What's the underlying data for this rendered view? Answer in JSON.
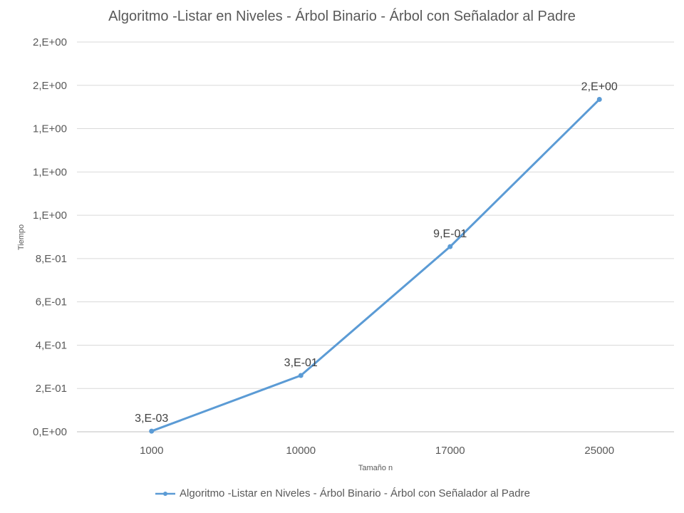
{
  "chart_data": {
    "type": "line",
    "title": "Algoritmo -Listar en Niveles - Árbol Binario - Árbol con Señalador al Padre",
    "xlabel": "Tamaño n",
    "ylabel": "Tiempo",
    "categories": [
      "1000",
      "10000",
      "17000",
      "25000"
    ],
    "series": [
      {
        "name": "Algoritmo -Listar en Niveles - Árbol Binario - Árbol con Señalador al Padre",
        "values": [
          0.003,
          0.26,
          0.855,
          1.535
        ],
        "data_labels": [
          "3,E-03",
          "3,E-01",
          "9,E-01",
          "2,E+00"
        ],
        "color": "#5B9BD5"
      }
    ],
    "ylim": [
      0,
      1.8
    ],
    "y_ticks": [
      0,
      0.2,
      0.4,
      0.6,
      0.8,
      1.0,
      1.2,
      1.4,
      1.6,
      1.8
    ],
    "y_tick_labels": [
      "0,E+00",
      "2,E-01",
      "4,E-01",
      "6,E-01",
      "8,E-01",
      "1,E+00",
      "1,E+00",
      "1,E+00",
      "2,E+00",
      "2,E+00"
    ],
    "grid": true,
    "legend_position": "bottom",
    "gridline_color": "#D9D9D9"
  }
}
